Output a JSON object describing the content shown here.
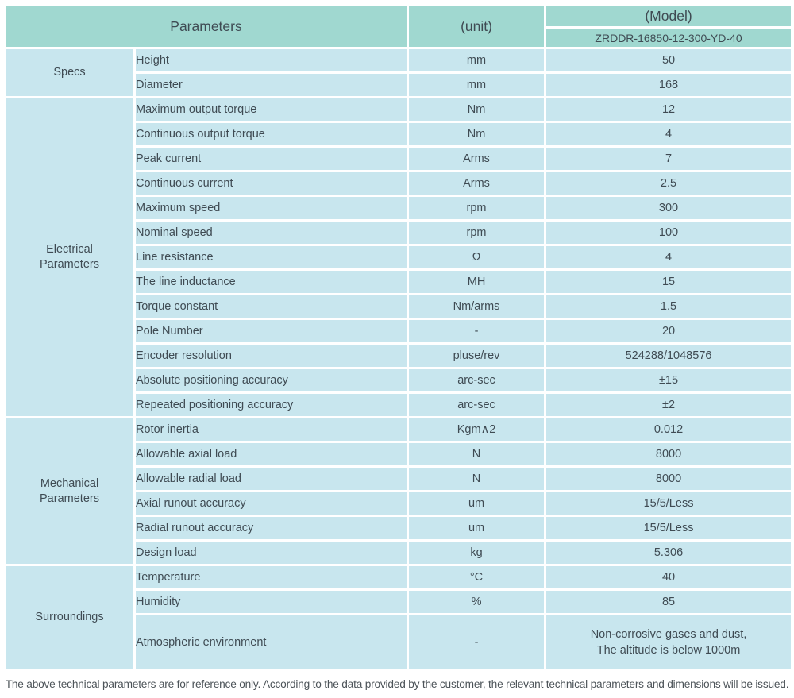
{
  "palette": {
    "header_bg": "#a0d8d0",
    "row_bg": "#c8e6ee",
    "divider": "#ffffff",
    "text": "#3f4b53"
  },
  "header": {
    "parameters_label": "Parameters",
    "unit_label": "(unit)",
    "model_label": "(Model)",
    "model_value": "ZRDDR-16850-12-300-YD-40"
  },
  "sections": [
    {
      "name": "Specs",
      "rows": [
        {
          "param": "Height",
          "unit": "mm",
          "value": "50"
        },
        {
          "param": "Diameter",
          "unit": "mm",
          "value": "168"
        }
      ]
    },
    {
      "name": "Electrical\nParameters",
      "rows": [
        {
          "param": "Maximum output torque",
          "unit": "Nm",
          "value": "12"
        },
        {
          "param": "Continuous output torque",
          "unit": "Nm",
          "value": "4"
        },
        {
          "param": "Peak current",
          "unit": "Arms",
          "value": "7"
        },
        {
          "param": "Continuous current",
          "unit": "Arms",
          "value": "2.5"
        },
        {
          "param": "Maximum speed",
          "unit": "rpm",
          "value": "300"
        },
        {
          "param": "Nominal speed",
          "unit": "rpm",
          "value": "100"
        },
        {
          "param": "Line resistance",
          "unit": "Ω",
          "value": "4"
        },
        {
          "param": "The line inductance",
          "unit": "MH",
          "value": "15"
        },
        {
          "param": "Torque constant",
          "unit": "Nm/arms",
          "value": "1.5"
        },
        {
          "param": "Pole Number",
          "unit": "-",
          "value": "20"
        },
        {
          "param": "Encoder resolution",
          "unit": "pluse/rev",
          "value": "524288/1048576"
        },
        {
          "param": "Absolute positioning accuracy",
          "unit": "arc-sec",
          "value": "±15"
        },
        {
          "param": "Repeated positioning accuracy",
          "unit": "arc-sec",
          "value": "±2"
        }
      ]
    },
    {
      "name": "Mechanical\nParameters",
      "rows": [
        {
          "param": "Rotor inertia",
          "unit": "Kgm∧2",
          "value": "0.012"
        },
        {
          "param": "Allowable axial load",
          "unit": "N",
          "value": "8000"
        },
        {
          "param": "Allowable radial load",
          "unit": "N",
          "value": "8000"
        },
        {
          "param": "Axial runout accuracy",
          "unit": "um",
          "value": "15/5/Less"
        },
        {
          "param": "Radial runout accuracy",
          "unit": "um",
          "value": "15/5/Less"
        },
        {
          "param": "Design load",
          "unit": "kg",
          "value": "5.306"
        }
      ]
    },
    {
      "name": "Surroundings",
      "rows": [
        {
          "param": "Temperature",
          "unit": "°C",
          "value": "40"
        },
        {
          "param": "Humidity",
          "unit": "%",
          "value": "85"
        },
        {
          "param": "Atmospheric environment",
          "unit": "-",
          "value": "Non-corrosive gases and dust,\nThe altitude is below 1000m"
        }
      ]
    }
  ],
  "footer": {
    "note": "The above technical parameters are for reference only. According to the data provided by the customer, the relevant technical parameters and dimensions will be issued."
  }
}
